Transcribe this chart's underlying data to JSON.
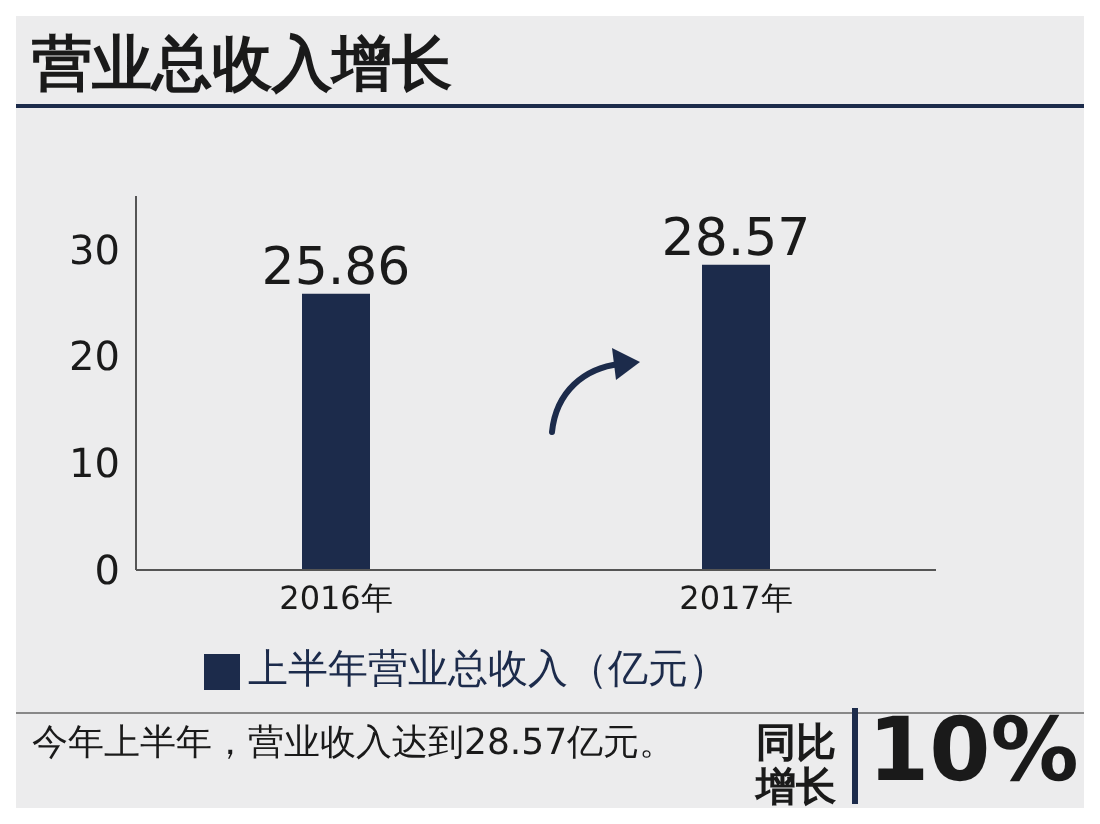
{
  "chart_data": {
    "type": "bar",
    "title": "营业总收入增长",
    "categories": [
      "2016年",
      "2017年"
    ],
    "series": [
      {
        "name": "上半年营业总收入（亿元）",
        "color": "#1c2b4b",
        "values": [
          25.86,
          28.57
        ]
      }
    ],
    "ylim": [
      0,
      35
    ],
    "yticks": [
      0,
      10,
      20,
      30
    ],
    "data_labels": true,
    "grid": false,
    "legend": "bottom",
    "annotations": [
      "今年上半年，营业收入达到28.57亿元。",
      "同比增长",
      "10%"
    ]
  }
}
